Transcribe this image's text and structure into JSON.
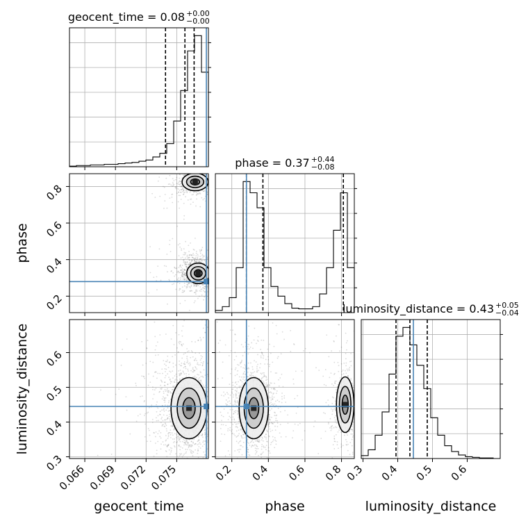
{
  "chart_data": {
    "type": "corner",
    "parameters": [
      "geocent_time",
      "phase",
      "luminosity_distance"
    ],
    "titles": [
      {
        "name": "geocent_time",
        "median": "0.08",
        "plus": "+0.00",
        "minus": "−0.00"
      },
      {
        "name": "phase",
        "median": "0.37",
        "plus": "+0.44",
        "minus": "−0.08"
      },
      {
        "name": "luminosity_distance",
        "median": "0.43",
        "plus": "+0.05",
        "minus": "−0.04"
      }
    ],
    "axis_labels": {
      "x": [
        "geocent_time",
        "phase",
        "luminosity_distance"
      ],
      "y": [
        "phase",
        "luminosity_distance"
      ]
    },
    "ranges": {
      "geocent_time": [
        0.0645,
        0.0781
      ],
      "phase": [
        0.11,
        0.87
      ],
      "luminosity_distance": [
        0.295,
        0.695
      ]
    },
    "ticks": {
      "geocent_time": [
        "0.066",
        "0.069",
        "0.072",
        "0.075"
      ],
      "phase_x": [
        "0.2",
        "0.4",
        "0.6",
        "0.8"
      ],
      "phase_y": [
        "0.2",
        "0.4",
        "0.6",
        "0.8"
      ],
      "luminosity_distance_x": [
        "0.3",
        "0.4",
        "0.5",
        "0.6"
      ],
      "luminosity_distance_y": [
        "0.3",
        "0.4",
        "0.5",
        "0.6"
      ]
    },
    "truth": {
      "geocent_time": 0.0779,
      "phase": 0.28,
      "luminosity_distance": 0.445
    },
    "quantiles": {
      "geocent_time": [
        0.0739,
        0.0758,
        0.0767
      ],
      "phase": [
        0.28,
        0.37,
        0.81
      ],
      "luminosity_distance": [
        0.395,
        0.435,
        0.485
      ]
    },
    "histograms": {
      "geocent_time": {
        "edges": [
          0.0645,
          0.06518,
          0.06586,
          0.06654,
          0.06722,
          0.0679,
          0.06858,
          0.06926,
          0.06994,
          0.07062,
          0.0713,
          0.07198,
          0.07266,
          0.07334,
          0.07402,
          0.0747,
          0.07538,
          0.07606,
          0.07674,
          0.07742,
          0.0781
        ],
        "counts": [
          1,
          2,
          2,
          3,
          3,
          4,
          4,
          5,
          6,
          7,
          9,
          11,
          16,
          22,
          38,
          75,
          125,
          190,
          215,
          155
        ]
      },
      "phase": {
        "edges": [
          0.11,
          0.148,
          0.186,
          0.224,
          0.262,
          0.3,
          0.338,
          0.376,
          0.414,
          0.452,
          0.49,
          0.528,
          0.566,
          0.604,
          0.642,
          0.68,
          0.718,
          0.756,
          0.794,
          0.832,
          0.87
        ],
        "counts": [
          3,
          8,
          20,
          60,
          175,
          160,
          140,
          60,
          35,
          22,
          12,
          6,
          5,
          5,
          8,
          25,
          60,
          110,
          160,
          60
        ]
      },
      "luminosity_distance": {
        "edges": [
          0.295,
          0.315,
          0.335,
          0.355,
          0.375,
          0.395,
          0.415,
          0.435,
          0.455,
          0.475,
          0.495,
          0.515,
          0.535,
          0.555,
          0.575,
          0.595,
          0.615,
          0.635,
          0.655,
          0.675,
          0.695
        ],
        "counts": [
          5,
          15,
          40,
          80,
          145,
          210,
          225,
          195,
          160,
          120,
          70,
          40,
          22,
          12,
          6,
          3,
          2,
          1,
          1,
          0
        ]
      }
    },
    "density_modes": {
      "phase_vs_geocent_time": [
        {
          "x": 0.0771,
          "y": 0.325,
          "sx": 0.0007,
          "sy": 0.035,
          "w": 1.0
        },
        {
          "x": 0.0768,
          "y": 0.825,
          "sx": 0.0008,
          "sy": 0.03,
          "w": 0.55
        }
      ],
      "luminosity_distance_vs_geocent_time": [
        {
          "x": 0.0762,
          "y": 0.44,
          "sx": 0.0011,
          "sy": 0.055,
          "w": 1.0
        }
      ],
      "luminosity_distance_vs_phase": [
        {
          "x": 0.32,
          "y": 0.44,
          "sx": 0.05,
          "sy": 0.055,
          "w": 1.0
        },
        {
          "x": 0.82,
          "y": 0.45,
          "sx": 0.03,
          "sy": 0.05,
          "w": 0.45
        }
      ]
    }
  }
}
